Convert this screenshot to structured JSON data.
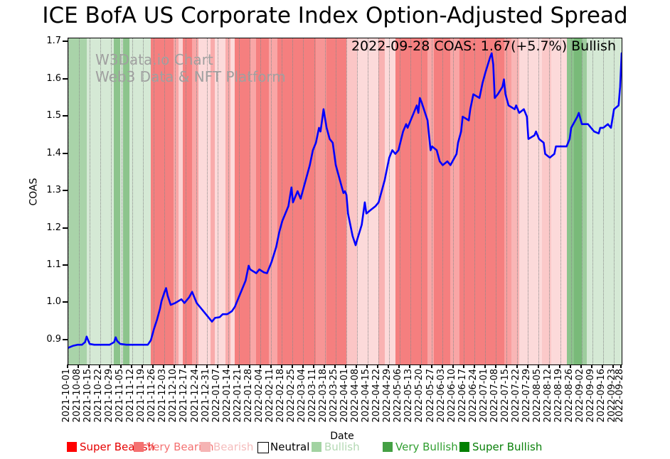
{
  "title": "ICE BofA US Corporate Index Option-Adjusted Spread",
  "watermark": {
    "line1": "W3Data.io Chart",
    "line2": "Web3 Data & NFT Platform"
  },
  "annotation": "2022-09-28 COAS: 1.67(+5.7%) Bullish",
  "latest": {
    "date": "2022-09-28",
    "value": "1.67",
    "change": "+5.7%",
    "sentiment": "Bullish"
  },
  "axes": {
    "x_label": "Date",
    "y_label": "COAS"
  },
  "legend": {
    "items": [
      {
        "label": "Super Bearish",
        "color": "#ff0000",
        "text_color": "#e60000",
        "border": false
      },
      {
        "label": "Very Bearish",
        "color": "#f47171",
        "text_color": "#f47171",
        "border": false
      },
      {
        "label": "Bearish",
        "color": "#f5b4b4",
        "text_color": "#f5bcbc",
        "border": false
      },
      {
        "label": "Neutral",
        "color": "#ffffff",
        "text_color": "#000000",
        "border": true
      },
      {
        "label": "Bullish",
        "color": "#a2d3a2",
        "text_color": "#b2d8b2",
        "border": false
      },
      {
        "label": "Very Bullish",
        "color": "#44a044",
        "text_color": "#2f9e2f",
        "border": false
      },
      {
        "label": "Super Bullish",
        "color": "#008000",
        "text_color": "#0a800a",
        "border": false
      }
    ]
  },
  "chart_data": {
    "type": "line",
    "title": "ICE BofA US Corporate Index Option-Adjusted Spread",
    "xlabel": "Date",
    "ylabel": "COAS",
    "ylim": [
      0.835,
      1.71
    ],
    "grid": "vertical-dotted",
    "legend_position": "bottom",
    "x_start_date": "2021-10-01",
    "x_end_date": "2022-09-28",
    "x_span_days": 362,
    "y_ticks": [
      "0.9",
      "1.0",
      "1.1",
      "1.2",
      "1.3",
      "1.4",
      "1.5",
      "1.6",
      "1.7"
    ],
    "x_ticks": [
      "2021-10-01",
      "2021-10-08",
      "2021-10-15",
      "2021-10-22",
      "2021-10-29",
      "2021-11-05",
      "2021-11-12",
      "2021-11-19",
      "2021-11-26",
      "2021-12-03",
      "2021-12-10",
      "2021-12-17",
      "2021-12-24",
      "2021-12-31",
      "2022-01-07",
      "2022-01-14",
      "2022-01-21",
      "2022-01-28",
      "2022-02-04",
      "2022-02-11",
      "2022-02-18",
      "2022-02-25",
      "2022-03-04",
      "2022-03-11",
      "2022-03-18",
      "2022-03-25",
      "2022-04-01",
      "2022-04-08",
      "2022-04-15",
      "2022-04-22",
      "2022-04-29",
      "2022-05-06",
      "2022-05-13",
      "2022-05-20",
      "2022-05-27",
      "2022-06-03",
      "2022-06-10",
      "2022-06-17",
      "2022-06-24",
      "2022-07-01",
      "2022-07-08",
      "2022-07-15",
      "2022-07-22",
      "2022-07-29",
      "2022-08-05",
      "2022-08-12",
      "2022-08-19",
      "2022-08-26",
      "2022-09-02",
      "2022-09-09",
      "2022-09-16",
      "2022-09-23",
      "2022-09-28"
    ],
    "line": {
      "color": "#0000ff",
      "points_day_value": [
        [
          0,
          0.88
        ],
        [
          3,
          0.885
        ],
        [
          6,
          0.888
        ],
        [
          9,
          0.888
        ],
        [
          11,
          0.895
        ],
        [
          12,
          0.91
        ],
        [
          13,
          0.9
        ],
        [
          14,
          0.89
        ],
        [
          17,
          0.888
        ],
        [
          20,
          0.888
        ],
        [
          24,
          0.888
        ],
        [
          27,
          0.888
        ],
        [
          30,
          0.895
        ],
        [
          31,
          0.908
        ],
        [
          32,
          0.898
        ],
        [
          34,
          0.89
        ],
        [
          38,
          0.888
        ],
        [
          41,
          0.888
        ],
        [
          45,
          0.888
        ],
        [
          48,
          0.888
        ],
        [
          52,
          0.888
        ],
        [
          54,
          0.9
        ],
        [
          56,
          0.93
        ],
        [
          58,
          0.955
        ],
        [
          60,
          0.985
        ],
        [
          61,
          1.005
        ],
        [
          63,
          1.03
        ],
        [
          64,
          1.04
        ],
        [
          65,
          1.02
        ],
        [
          67,
          0.995
        ],
        [
          70,
          1.0
        ],
        [
          72,
          1.005
        ],
        [
          74,
          1.01
        ],
        [
          76,
          1.0
        ],
        [
          79,
          1.015
        ],
        [
          81,
          1.03
        ],
        [
          83,
          1.01
        ],
        [
          84,
          1.0
        ],
        [
          87,
          0.985
        ],
        [
          89,
          0.975
        ],
        [
          91,
          0.965
        ],
        [
          94,
          0.95
        ],
        [
          96,
          0.96
        ],
        [
          99,
          0.962
        ],
        [
          101,
          0.97
        ],
        [
          104,
          0.97
        ],
        [
          107,
          0.978
        ],
        [
          109,
          0.99
        ],
        [
          110,
          1.0
        ],
        [
          112,
          1.02
        ],
        [
          114,
          1.04
        ],
        [
          116,
          1.06
        ],
        [
          118,
          1.1
        ],
        [
          119,
          1.09
        ],
        [
          123,
          1.08
        ],
        [
          125,
          1.09
        ],
        [
          128,
          1.082
        ],
        [
          130,
          1.08
        ],
        [
          132,
          1.1
        ],
        [
          133,
          1.11
        ],
        [
          136,
          1.15
        ],
        [
          138,
          1.19
        ],
        [
          140,
          1.22
        ],
        [
          144,
          1.26
        ],
        [
          146,
          1.31
        ],
        [
          147,
          1.27
        ],
        [
          150,
          1.3
        ],
        [
          152,
          1.28
        ],
        [
          154,
          1.31
        ],
        [
          156,
          1.34
        ],
        [
          158,
          1.37
        ],
        [
          160,
          1.41
        ],
        [
          162,
          1.43
        ],
        [
          164,
          1.47
        ],
        [
          165,
          1.46
        ],
        [
          166,
          1.49
        ],
        [
          167,
          1.52
        ],
        [
          169,
          1.47
        ],
        [
          171,
          1.44
        ],
        [
          173,
          1.43
        ],
        [
          175,
          1.37
        ],
        [
          177,
          1.34
        ],
        [
          179,
          1.31
        ],
        [
          180,
          1.295
        ],
        [
          181,
          1.3
        ],
        [
          182,
          1.29
        ],
        [
          183,
          1.24
        ],
        [
          186,
          1.18
        ],
        [
          188,
          1.155
        ],
        [
          189,
          1.17
        ],
        [
          192,
          1.21
        ],
        [
          194,
          1.27
        ],
        [
          195,
          1.24
        ],
        [
          198,
          1.25
        ],
        [
          201,
          1.26
        ],
        [
          203,
          1.27
        ],
        [
          205,
          1.3
        ],
        [
          207,
          1.33
        ],
        [
          208,
          1.35
        ],
        [
          210,
          1.39
        ],
        [
          212,
          1.41
        ],
        [
          214,
          1.4
        ],
        [
          216,
          1.41
        ],
        [
          219,
          1.46
        ],
        [
          221,
          1.48
        ],
        [
          222,
          1.47
        ],
        [
          224,
          1.49
        ],
        [
          228,
          1.53
        ],
        [
          229,
          1.51
        ],
        [
          230,
          1.55
        ],
        [
          231,
          1.54
        ],
        [
          235,
          1.49
        ],
        [
          236,
          1.45
        ],
        [
          237,
          1.41
        ],
        [
          238,
          1.42
        ],
        [
          241,
          1.41
        ],
        [
          243,
          1.38
        ],
        [
          245,
          1.37
        ],
        [
          248,
          1.38
        ],
        [
          250,
          1.37
        ],
        [
          254,
          1.4
        ],
        [
          255,
          1.43
        ],
        [
          257,
          1.46
        ],
        [
          258,
          1.5
        ],
        [
          262,
          1.49
        ],
        [
          263,
          1.52
        ],
        [
          265,
          1.56
        ],
        [
          269,
          1.55
        ],
        [
          271,
          1.59
        ],
        [
          273,
          1.62
        ],
        [
          276,
          1.66
        ],
        [
          277,
          1.67
        ],
        [
          278,
          1.64
        ],
        [
          279,
          1.55
        ],
        [
          281,
          1.56
        ],
        [
          284,
          1.58
        ],
        [
          285,
          1.6
        ],
        [
          286,
          1.56
        ],
        [
          288,
          1.53
        ],
        [
          292,
          1.52
        ],
        [
          293,
          1.53
        ],
        [
          295,
          1.51
        ],
        [
          298,
          1.52
        ],
        [
          300,
          1.5
        ],
        [
          301,
          1.44
        ],
        [
          305,
          1.45
        ],
        [
          306,
          1.46
        ],
        [
          308,
          1.44
        ],
        [
          311,
          1.43
        ],
        [
          312,
          1.4
        ],
        [
          315,
          1.39
        ],
        [
          318,
          1.4
        ],
        [
          319,
          1.42
        ],
        [
          322,
          1.42
        ],
        [
          326,
          1.42
        ],
        [
          328,
          1.44
        ],
        [
          329,
          1.47
        ],
        [
          333,
          1.5
        ],
        [
          334,
          1.51
        ],
        [
          336,
          1.48
        ],
        [
          340,
          1.48
        ],
        [
          342,
          1.47
        ],
        [
          344,
          1.46
        ],
        [
          347,
          1.455
        ],
        [
          348,
          1.47
        ],
        [
          350,
          1.47
        ],
        [
          353,
          1.48
        ],
        [
          355,
          1.47
        ],
        [
          357,
          1.52
        ],
        [
          360,
          1.53
        ],
        [
          361,
          1.58
        ],
        [
          362,
          1.67
        ]
      ]
    },
    "bands": [
      [
        0,
        12,
        "#a9d3a9"
      ],
      [
        12,
        30,
        "#d5e9d5"
      ],
      [
        30,
        34,
        "#8cc48c"
      ],
      [
        34,
        36,
        "#d5e9d5"
      ],
      [
        36,
        40,
        "#8cc48c"
      ],
      [
        40,
        54,
        "#d5e9d5"
      ],
      [
        54,
        69,
        "#f57f7f"
      ],
      [
        69,
        72,
        "#f9a6a6"
      ],
      [
        72,
        75,
        "#fbd3d3"
      ],
      [
        75,
        81,
        "#f57f7f"
      ],
      [
        81,
        85,
        "#f9a6a6"
      ],
      [
        85,
        93,
        "#fcdada"
      ],
      [
        93,
        96,
        "#f9abab"
      ],
      [
        96,
        103,
        "#fcdada"
      ],
      [
        103,
        106,
        "#f9abab"
      ],
      [
        106,
        109,
        "#fcdada"
      ],
      [
        109,
        119,
        "#f57f7f"
      ],
      [
        119,
        123,
        "#f9a6a6"
      ],
      [
        123,
        131,
        "#f57f7f"
      ],
      [
        131,
        137,
        "#f9a6a6"
      ],
      [
        137,
        162,
        "#f57f7f"
      ],
      [
        162,
        169,
        "#f79595"
      ],
      [
        169,
        182,
        "#f57f7f"
      ],
      [
        182,
        189,
        "#fbc6c6"
      ],
      [
        189,
        203,
        "#fcdada"
      ],
      [
        203,
        207,
        "#f9b2b2"
      ],
      [
        207,
        214,
        "#fcdada"
      ],
      [
        214,
        235,
        "#f57f7f"
      ],
      [
        235,
        239,
        "#f9a6a6"
      ],
      [
        239,
        250,
        "#f57f7f"
      ],
      [
        250,
        256,
        "#f9a6a6"
      ],
      [
        256,
        285,
        "#f57f7f"
      ],
      [
        285,
        290,
        "#f99f9f"
      ],
      [
        290,
        295,
        "#f9b6b6"
      ],
      [
        295,
        310,
        "#fcdada"
      ],
      [
        310,
        316,
        "#fbc9c9"
      ],
      [
        316,
        326,
        "#fcdada"
      ],
      [
        326,
        331,
        "#8cc48c"
      ],
      [
        331,
        336,
        "#79ba79"
      ],
      [
        336,
        339,
        "#9ecd9e"
      ],
      [
        339,
        362,
        "#d5e9d5"
      ]
    ]
  }
}
